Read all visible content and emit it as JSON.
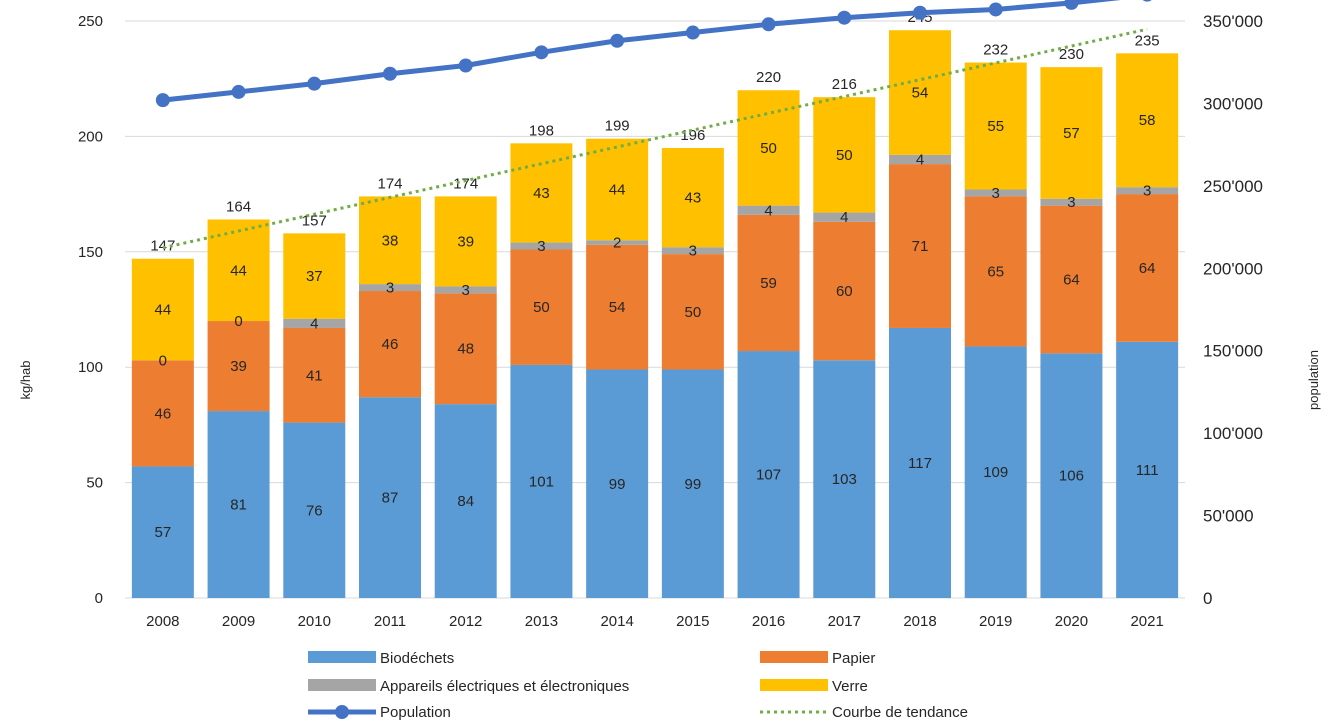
{
  "chart_data": {
    "type": "bar",
    "stacked": true,
    "categories": [
      "2008",
      "2009",
      "2010",
      "2011",
      "2012",
      "2013",
      "2014",
      "2015",
      "2016",
      "2017",
      "2018",
      "2019",
      "2020",
      "2021"
    ],
    "series": [
      {
        "name": "Biodéchets",
        "color": "#5B9BD5",
        "values": [
          57,
          81,
          76,
          87,
          84,
          101,
          99,
          99,
          107,
          103,
          117,
          109,
          106,
          111
        ]
      },
      {
        "name": "Papier",
        "color": "#ED7D31",
        "values": [
          46,
          39,
          41,
          46,
          48,
          50,
          54,
          50,
          59,
          60,
          71,
          65,
          64,
          64
        ]
      },
      {
        "name": "Appareils électriques et électroniques",
        "color": "#A5A5A5",
        "values": [
          0,
          0,
          4,
          3,
          3,
          3,
          2,
          3,
          4,
          4,
          4,
          3,
          3,
          3
        ]
      },
      {
        "name": "Verre",
        "color": "#FFC000",
        "values": [
          44,
          44,
          37,
          38,
          39,
          43,
          44,
          43,
          50,
          50,
          54,
          55,
          57,
          58
        ]
      }
    ],
    "totals": [
      147,
      164,
      157,
      174,
      174,
      198,
      199,
      196,
      220,
      216,
      245,
      232,
      230,
      235
    ],
    "line": {
      "name": "Population",
      "color": "#4472C4",
      "axis": "right",
      "values": [
        302000,
        307000,
        312000,
        318000,
        323000,
        331000,
        338000,
        343000,
        348000,
        352000,
        355000,
        357000,
        361000,
        366000
      ]
    },
    "trend": {
      "name": "Courbe de tendance",
      "color": "#70AD47"
    },
    "ylabel": "kg/hab",
    "y2label": "population",
    "ylim": [
      0,
      250
    ],
    "yticks": [
      0,
      50,
      100,
      150,
      200,
      250
    ],
    "y2lim": [
      0,
      350000
    ],
    "y2ticks": [
      "0",
      "50'000",
      "100'000",
      "150'000",
      "200'000",
      "250'000",
      "300'000",
      "350'000"
    ],
    "grid": true,
    "legend_position": "bottom"
  }
}
